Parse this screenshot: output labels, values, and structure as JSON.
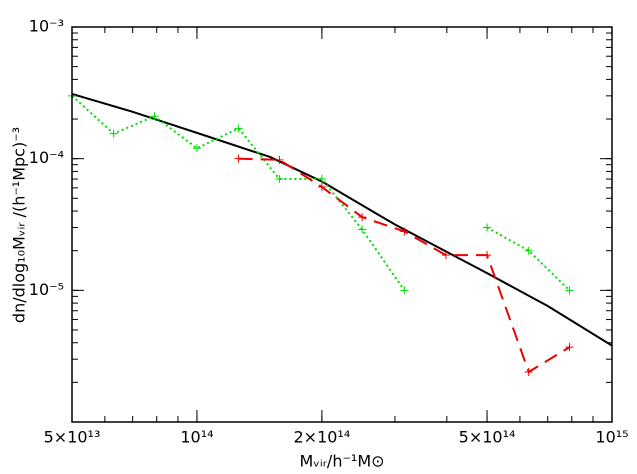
{
  "chart_data": {
    "type": "line",
    "xlabel": "Mᵥᵢᵣ/h⁻¹M⊙",
    "ylabel": "dn/dlog₁₀Mᵥᵢᵣ /(h⁻¹Mpc)⁻³",
    "xscale": "log",
    "yscale": "log",
    "xlim": [
      50000000000000.0,
      1000000000000000.0
    ],
    "ylim": [
      1e-06,
      0.001
    ],
    "xticks": [
      {
        "value": 50000000000000.0,
        "label": "5×10¹³"
      },
      {
        "value": 100000000000000.0,
        "label": "10¹⁴"
      },
      {
        "value": 200000000000000.0,
        "label": "2×10¹⁴"
      },
      {
        "value": 500000000000000.0,
        "label": "5×10¹⁴"
      },
      {
        "value": 1000000000000000.0,
        "label": "10¹⁵"
      }
    ],
    "yticks": [
      {
        "value": 0.001,
        "label": "10⁻³"
      },
      {
        "value": 0.0001,
        "label": "10⁻⁴"
      },
      {
        "value": 1e-05,
        "label": "10⁻⁵"
      }
    ],
    "series": [
      {
        "color": "#000000",
        "style": "solid",
        "markers": false,
        "x": [
          50000000000000.0,
          70000000000000.0,
          100000000000000.0,
          150000000000000.0,
          200000000000000.0,
          300000000000000.0,
          500000000000000.0,
          700000000000000.0,
          1000000000000000.0
        ],
        "values": [
          0.00031,
          0.000227,
          0.000157,
          0.000103,
          6.7e-05,
          3.16e-05,
          1.35e-05,
          7.6e-06,
          3.8e-06
        ]
      },
      {
        "color": "#00dd00",
        "style": "dotted",
        "markers": true,
        "x": [
          50000000000000.0,
          63000000000000.0,
          79000000000000.0,
          100000000000000.0,
          126000000000000.0,
          158000000000000.0,
          200000000000000.0,
          250000000000000.0,
          316000000000000.0,
          398000000000000.0,
          500000000000000.0,
          630000000000000.0,
          790000000000000.0
        ],
        "values": [
          0.0003,
          0.000155,
          0.00021,
          0.00012,
          0.00017,
          7e-05,
          7e-05,
          2.9e-05,
          1e-05,
          null,
          3e-05,
          2e-05,
          1e-05
        ]
      },
      {
        "color": "#ee0000",
        "style": "dashed",
        "markers": true,
        "x": [
          126000000000000.0,
          158000000000000.0,
          200000000000000.0,
          250000000000000.0,
          316000000000000.0,
          398000000000000.0,
          500000000000000.0,
          630000000000000.0,
          790000000000000.0
        ],
        "values": [
          0.0001,
          9.8e-05,
          6.1e-05,
          3.6e-05,
          2.8e-05,
          1.85e-05,
          1.85e-05,
          2.4e-06,
          3.7e-06
        ]
      }
    ]
  }
}
